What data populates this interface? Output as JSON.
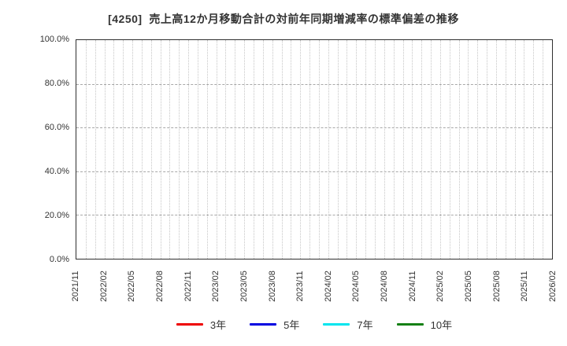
{
  "title": "[4250]  売上高12か月移動合計の対前年同期増減率の標準偏差の推移",
  "chart_data": {
    "type": "line",
    "title": "[4250]  売上高12か月移動合計の対前年同期増減率の標準偏差の推移",
    "xlabel": "",
    "ylabel": "",
    "ylim": [
      0,
      100
    ],
    "y_ticks": [
      {
        "value": 0,
        "label": "0.0%"
      },
      {
        "value": 20,
        "label": "20.0%"
      },
      {
        "value": 40,
        "label": "40.0%"
      },
      {
        "value": 60,
        "label": "60.0%"
      },
      {
        "value": 80,
        "label": "80.0%"
      },
      {
        "value": 100,
        "label": "100.0%"
      }
    ],
    "x_total_months": 51,
    "x_label_step_months": 3,
    "x_labels": [
      "2021/11",
      "2022/02",
      "2022/05",
      "2022/08",
      "2022/11",
      "2023/02",
      "2023/05",
      "2023/08",
      "2023/11",
      "2024/02",
      "2024/05",
      "2024/08",
      "2024/11",
      "2025/02",
      "2025/05",
      "2025/08",
      "2025/11",
      "2026/02"
    ],
    "grid": {
      "vertical": "monthly dotted",
      "horizontal": "every 20% dashed",
      "on": true
    },
    "legend_position": "bottom-center",
    "series": [
      {
        "name": "3年",
        "color": "#ee0000",
        "values": []
      },
      {
        "name": "5年",
        "color": "#0000e0",
        "values": []
      },
      {
        "name": "7年",
        "color": "#00e5ee",
        "values": []
      },
      {
        "name": "10年",
        "color": "#158015",
        "values": []
      }
    ],
    "note": "no data plotted; chart area empty"
  }
}
